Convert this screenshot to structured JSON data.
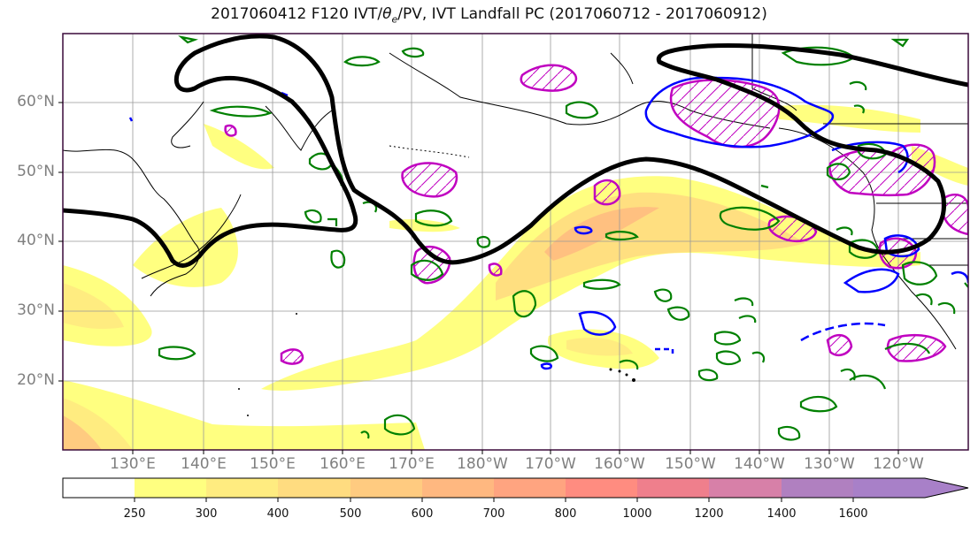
{
  "title": "2017060412 F120 IVT/θe/PV, IVT Landfall PC (2017060712 - 2017060912)",
  "title_parts": {
    "prefix": "2017060412 F120 IVT/",
    "theta": "θ",
    "sub": "e",
    "suffix": "/PV, IVT Landfall PC (2017060712 - 2017060912)"
  },
  "lat_labels": [
    "60°N",
    "50°N",
    "40°N",
    "30°N",
    "20°N"
  ],
  "lon_labels": [
    "130°E",
    "140°E",
    "150°E",
    "160°E",
    "170°E",
    "180°W",
    "170°W",
    "160°W",
    "150°W",
    "140°W",
    "130°W",
    "120°W"
  ],
  "colorbar": {
    "ticks": [
      "250",
      "300",
      "400",
      "500",
      "600",
      "700",
      "800",
      "1000",
      "1200",
      "1400",
      "1600"
    ],
    "colors": [
      "#ffffff",
      "#ffff80",
      "#ffec80",
      "#ffdc80",
      "#ffcb80",
      "#ffb880",
      "#ffa480",
      "#ff8c80",
      "#ef7f8c",
      "#d780a8",
      "#b080c0",
      "#a880c8"
    ]
  },
  "colors": {
    "jet_contour": "#000000",
    "theta_e_contour": "#008000",
    "pv_blue": "#0000ff",
    "pv_magenta": "#c000c0",
    "frame": "#3a0a3a",
    "grid": "#999999"
  }
}
